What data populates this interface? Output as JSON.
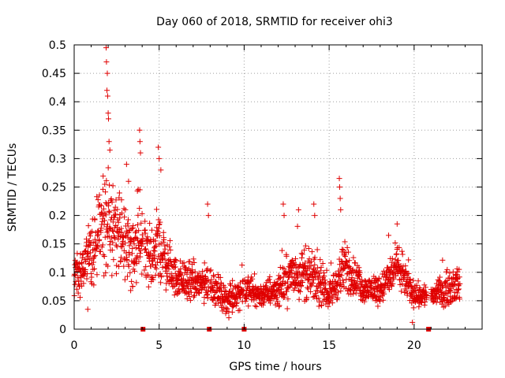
{
  "chart_data": {
    "type": "scatter",
    "title": "Day 060 of 2018, SRMTID for receiver ohi3",
    "xlabel": "GPS time / hours",
    "ylabel": "SRMTID / TECUs",
    "xlim": [
      0,
      24
    ],
    "ylim": [
      0,
      0.5
    ],
    "xticks": [
      0,
      5,
      10,
      15,
      20
    ],
    "xtick_labels": [
      "0",
      "5",
      "10",
      "15",
      "20"
    ],
    "yticks": [
      0,
      0.05,
      0.1,
      0.15,
      0.2,
      0.25,
      0.3,
      0.35,
      0.4,
      0.45,
      0.5
    ],
    "ytick_labels": [
      "0",
      "0.05",
      "0.1",
      "0.15",
      "0.2",
      "0.25",
      "0.3",
      "0.35",
      "0.4",
      "0.45",
      "0.5"
    ],
    "grid": true,
    "marker": "plus",
    "color": "#e00000",
    "series": [
      {
        "name": "SRMTID",
        "envelope": [
          {
            "x": 0.0,
            "base": 0.09,
            "spread": 0.04
          },
          {
            "x": 0.5,
            "base": 0.11,
            "spread": 0.06
          },
          {
            "x": 1.0,
            "base": 0.13,
            "spread": 0.09
          },
          {
            "x": 1.5,
            "base": 0.17,
            "spread": 0.11
          },
          {
            "x": 2.0,
            "base": 0.19,
            "spread": 0.14
          },
          {
            "x": 2.5,
            "base": 0.17,
            "spread": 0.1
          },
          {
            "x": 3.0,
            "base": 0.15,
            "spread": 0.1
          },
          {
            "x": 3.5,
            "base": 0.14,
            "spread": 0.08
          },
          {
            "x": 4.0,
            "base": 0.14,
            "spread": 0.09
          },
          {
            "x": 4.5,
            "base": 0.13,
            "spread": 0.07
          },
          {
            "x": 5.0,
            "base": 0.15,
            "spread": 0.1
          },
          {
            "x": 5.5,
            "base": 0.11,
            "spread": 0.06
          },
          {
            "x": 6.0,
            "base": 0.09,
            "spread": 0.05
          },
          {
            "x": 7.0,
            "base": 0.08,
            "spread": 0.05
          },
          {
            "x": 8.0,
            "base": 0.08,
            "spread": 0.05
          },
          {
            "x": 9.0,
            "base": 0.05,
            "spread": 0.03
          },
          {
            "x": 10.0,
            "base": 0.07,
            "spread": 0.04
          },
          {
            "x": 11.0,
            "base": 0.06,
            "spread": 0.03
          },
          {
            "x": 12.0,
            "base": 0.07,
            "spread": 0.04
          },
          {
            "x": 13.0,
            "base": 0.1,
            "spread": 0.07
          },
          {
            "x": 14.0,
            "base": 0.09,
            "spread": 0.06
          },
          {
            "x": 15.0,
            "base": 0.06,
            "spread": 0.03
          },
          {
            "x": 16.0,
            "base": 0.11,
            "spread": 0.07
          },
          {
            "x": 17.0,
            "base": 0.07,
            "spread": 0.03
          },
          {
            "x": 18.0,
            "base": 0.07,
            "spread": 0.04
          },
          {
            "x": 19.0,
            "base": 0.11,
            "spread": 0.05
          },
          {
            "x": 20.0,
            "base": 0.06,
            "spread": 0.03
          },
          {
            "x": 21.0,
            "base": 0.06,
            "spread": 0.03
          },
          {
            "x": 22.0,
            "base": 0.07,
            "spread": 0.04
          },
          {
            "x": 22.7,
            "base": 0.08,
            "spread": 0.04
          }
        ],
        "gaps": [
          [
            4.05,
            4.12
          ],
          [
            7.9,
            7.98
          ],
          [
            9.95,
            10.02
          ],
          [
            20.75,
            20.98
          ]
        ],
        "peaks": [
          {
            "x": 1.88,
            "y": 0.495
          },
          {
            "x": 1.9,
            "y": 0.47
          },
          {
            "x": 1.95,
            "y": 0.45
          },
          {
            "x": 1.93,
            "y": 0.42
          },
          {
            "x": 1.97,
            "y": 0.41
          },
          {
            "x": 2.0,
            "y": 0.38
          },
          {
            "x": 2.02,
            "y": 0.37
          },
          {
            "x": 2.05,
            "y": 0.33
          },
          {
            "x": 2.1,
            "y": 0.315
          },
          {
            "x": 3.08,
            "y": 0.29
          },
          {
            "x": 3.2,
            "y": 0.26
          },
          {
            "x": 3.85,
            "y": 0.35
          },
          {
            "x": 3.87,
            "y": 0.33
          },
          {
            "x": 3.9,
            "y": 0.31
          },
          {
            "x": 4.95,
            "y": 0.32
          },
          {
            "x": 5.0,
            "y": 0.3
          },
          {
            "x": 5.1,
            "y": 0.28
          },
          {
            "x": 7.85,
            "y": 0.22
          },
          {
            "x": 7.9,
            "y": 0.2
          },
          {
            "x": 12.3,
            "y": 0.22
          },
          {
            "x": 12.35,
            "y": 0.2
          },
          {
            "x": 13.2,
            "y": 0.21
          },
          {
            "x": 14.1,
            "y": 0.22
          },
          {
            "x": 14.15,
            "y": 0.2
          },
          {
            "x": 15.6,
            "y": 0.265
          },
          {
            "x": 15.62,
            "y": 0.25
          },
          {
            "x": 15.65,
            "y": 0.23
          },
          {
            "x": 15.68,
            "y": 0.21
          },
          {
            "x": 18.5,
            "y": 0.165
          },
          {
            "x": 19.0,
            "y": 0.185
          }
        ],
        "lows": [
          {
            "x": 0.8,
            "y": 0.035
          },
          {
            "x": 9.1,
            "y": 0.02
          },
          {
            "x": 9.3,
            "y": 0.03
          },
          {
            "x": 19.9,
            "y": 0.012
          }
        ]
      }
    ],
    "axis_markers": [
      {
        "x": 4.05,
        "y": 0
      },
      {
        "x": 7.95,
        "y": 0
      },
      {
        "x": 10.0,
        "y": 0
      },
      {
        "x": 20.85,
        "y": 0
      }
    ]
  }
}
